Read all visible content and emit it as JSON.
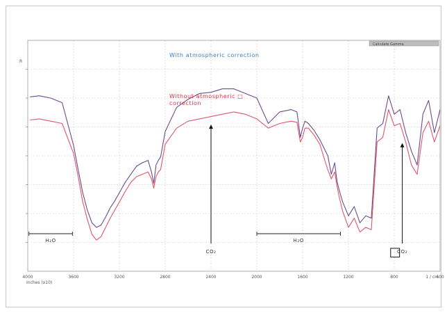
{
  "chart_data": {
    "type": "line",
    "title": "",
    "xlabel": "",
    "ylabel": "",
    "x_reversed": true,
    "xlim": [
      4000,
      400
    ],
    "ylim": [
      0,
      1
    ],
    "grid": true,
    "tick_labels": [
      "4000",
      "3600",
      "3200",
      "2800",
      "2400",
      "2000",
      "1600",
      "1200",
      "800",
      "400"
    ],
    "corner_labels": {
      "bottom_left": "Inches (x10)",
      "bottom_right": "1 / cm"
    },
    "legend_box_text": "Calculate Gamma",
    "y_marker": "R",
    "series": [
      {
        "name": "With atmospheric correction",
        "color": "#6b4a8a",
        "x": [
          3980,
          3900,
          3800,
          3700,
          3600,
          3560,
          3520,
          3480,
          3440,
          3400,
          3360,
          3320,
          3280,
          3240,
          3200,
          3150,
          3100,
          3050,
          3000,
          2950,
          2920,
          2900,
          2880,
          2860,
          2840,
          2800,
          2700,
          2600,
          2500,
          2400,
          2300,
          2200,
          2100,
          2000,
          1900,
          1800,
          1700,
          1650,
          1620,
          1600,
          1580,
          1550,
          1500,
          1450,
          1400,
          1380,
          1350,
          1320,
          1300,
          1280,
          1250,
          1200,
          1150,
          1100,
          1050,
          1000,
          950,
          900,
          850,
          800,
          750,
          700,
          650,
          600,
          550,
          500,
          450,
          400
        ],
        "y": [
          0.755,
          0.76,
          0.75,
          0.73,
          0.545,
          0.44,
          0.34,
          0.265,
          0.21,
          0.19,
          0.2,
          0.235,
          0.275,
          0.305,
          0.34,
          0.385,
          0.42,
          0.455,
          0.47,
          0.48,
          0.43,
          0.38,
          0.46,
          0.48,
          0.495,
          0.605,
          0.71,
          0.745,
          0.77,
          0.775,
          0.79,
          0.79,
          0.77,
          0.75,
          0.64,
          0.69,
          0.7,
          0.69,
          0.58,
          0.62,
          0.65,
          0.64,
          0.61,
          0.57,
          0.52,
          0.5,
          0.42,
          0.47,
          0.39,
          0.35,
          0.3,
          0.24,
          0.28,
          0.21,
          0.24,
          0.23,
          0.62,
          0.64,
          0.76,
          0.68,
          0.7,
          0.6,
          0.52,
          0.46,
          0.68,
          0.74,
          0.6,
          0.7
        ]
      },
      {
        "name": "Without atmospheric correction",
        "color": "#e0566a",
        "x": [
          3980,
          3900,
          3800,
          3700,
          3600,
          3560,
          3520,
          3480,
          3440,
          3400,
          3360,
          3320,
          3280,
          3240,
          3200,
          3150,
          3100,
          3050,
          3000,
          2950,
          2920,
          2900,
          2880,
          2860,
          2840,
          2800,
          2700,
          2600,
          2500,
          2400,
          2300,
          2200,
          2100,
          2000,
          1900,
          1800,
          1700,
          1650,
          1620,
          1600,
          1580,
          1550,
          1500,
          1450,
          1400,
          1380,
          1350,
          1320,
          1300,
          1280,
          1250,
          1200,
          1150,
          1100,
          1050,
          1000,
          950,
          900,
          850,
          800,
          750,
          700,
          650,
          600,
          550,
          500,
          450,
          400
        ],
        "y": [
          0.655,
          0.66,
          0.65,
          0.64,
          0.51,
          0.41,
          0.3,
          0.225,
          0.16,
          0.135,
          0.15,
          0.19,
          0.23,
          0.265,
          0.3,
          0.345,
          0.385,
          0.41,
          0.42,
          0.43,
          0.4,
          0.36,
          0.41,
          0.43,
          0.44,
          0.55,
          0.62,
          0.65,
          0.66,
          0.67,
          0.68,
          0.69,
          0.68,
          0.66,
          0.62,
          0.64,
          0.65,
          0.645,
          0.56,
          0.58,
          0.62,
          0.62,
          0.59,
          0.55,
          0.47,
          0.44,
          0.4,
          0.43,
          0.37,
          0.32,
          0.26,
          0.19,
          0.23,
          0.17,
          0.19,
          0.18,
          0.56,
          0.58,
          0.7,
          0.63,
          0.64,
          0.56,
          0.46,
          0.42,
          0.6,
          0.65,
          0.56,
          0.63
        ]
      }
    ],
    "annotations": [
      {
        "id": "with",
        "text": "With atmospheric correction",
        "color": "#3a7fc4"
      },
      {
        "id": "without1",
        "text": "Without atmospheric □",
        "color": "#e0304a"
      },
      {
        "id": "without2",
        "text": "correction",
        "color": "#e0304a"
      }
    ],
    "arrows": [
      {
        "label": "CO₂",
        "x_value": 2400,
        "y_tip": 0.635,
        "y_base": 0.12
      },
      {
        "label": "CO₂",
        "x_value": 730,
        "y_tip": 0.555,
        "y_base": 0.12
      }
    ],
    "regions": [
      {
        "label": "H₂O",
        "x_from": 3990,
        "x_to": 3610
      },
      {
        "label": "H₂O",
        "x_from": 2000,
        "x_to": 1270
      }
    ],
    "co2_right_prefix": "□"
  }
}
